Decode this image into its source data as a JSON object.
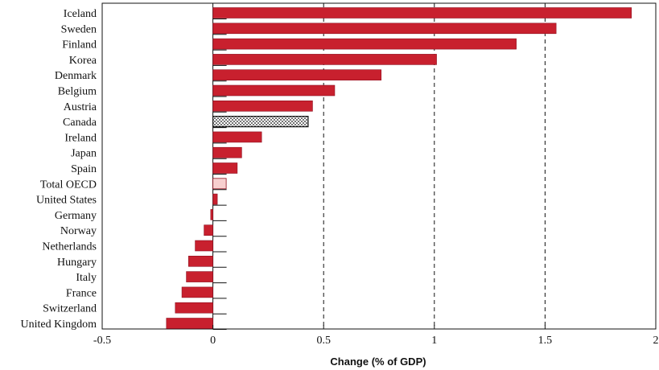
{
  "chart_data": {
    "type": "bar",
    "orientation": "horizontal",
    "title": "",
    "xlabel": "Change (% of GDP)",
    "ylabel": "",
    "xlim": [
      -0.5,
      2
    ],
    "x_ticks": [
      -0.5,
      0,
      0.5,
      1,
      1.5,
      2
    ],
    "x_tick_labels": [
      "-0.5",
      "0",
      "0.5",
      "1",
      "1.5",
      "2"
    ],
    "grid": "vertical dashed at 0.5, 1, 1.5",
    "categories": [
      "Iceland",
      "Sweden",
      "Finland",
      "Korea",
      "Denmark",
      "Belgium",
      "Austria",
      "Canada",
      "Ireland",
      "Japan",
      "Spain",
      "Total OECD",
      "United States",
      "Germany",
      "Norway",
      "Netherlands",
      "Hungary",
      "Italy",
      "France",
      "Switzerland",
      "United Kingdom"
    ],
    "values": [
      1.89,
      1.55,
      1.37,
      1.01,
      0.76,
      0.55,
      0.45,
      0.43,
      0.22,
      0.13,
      0.11,
      0.06,
      0.02,
      -0.01,
      -0.04,
      -0.08,
      -0.11,
      -0.12,
      -0.14,
      -0.17,
      -0.21
    ],
    "highlight": {
      "Canada": "dotted",
      "Total OECD": "light"
    },
    "colors": {
      "bar": "#c8202e",
      "bar_edge": "#8e1020",
      "oecd": "#f7cfcf",
      "canada_bg": "#ffffff",
      "canada_dot": "#111111",
      "grid": "#111111"
    }
  }
}
